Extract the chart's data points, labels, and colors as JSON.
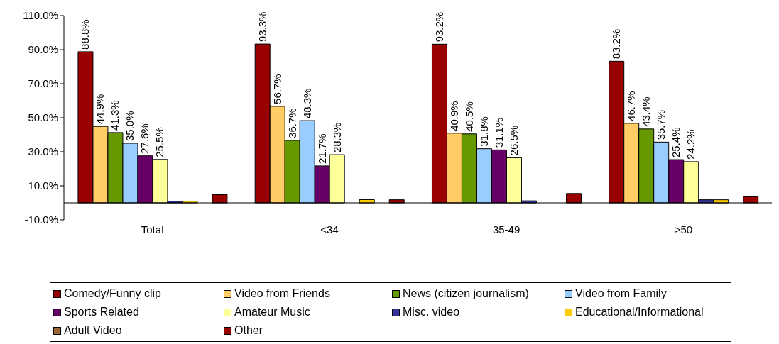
{
  "chart_data": {
    "type": "bar",
    "categories": [
      "Total",
      "<34",
      "35-49",
      ">50"
    ],
    "series": [
      {
        "name": "Comedy/Funny clip",
        "color": "#990000",
        "values": [
          88.8,
          93.3,
          93.2,
          83.2
        ],
        "value_labels": [
          "88.8%",
          "93.3%",
          "93.2%",
          "83.2%"
        ]
      },
      {
        "name": "Video from Friends",
        "color": "#ffcc66",
        "values": [
          44.9,
          56.7,
          40.9,
          46.7
        ],
        "value_labels": [
          "44.9%",
          "56.7%",
          "40.9%",
          "46.7%"
        ]
      },
      {
        "name": "News (citizen journalism)",
        "color": "#669900",
        "values": [
          41.3,
          36.7,
          40.5,
          43.4
        ],
        "value_labels": [
          "41.3%",
          "36.7%",
          "40.5%",
          "43.4%"
        ]
      },
      {
        "name": "Video from Family",
        "color": "#99ccff",
        "values": [
          35.0,
          48.3,
          31.8,
          35.7
        ],
        "value_labels": [
          "35.0%",
          "48.3%",
          "31.8%",
          "35.7%"
        ]
      },
      {
        "name": "Sports Related",
        "color": "#660066",
        "values": [
          27.6,
          21.7,
          31.1,
          25.4
        ],
        "value_labels": [
          "27.6%",
          "21.7%",
          "31.1%",
          "25.4%"
        ]
      },
      {
        "name": "Amateur Music",
        "color": "#ffff99",
        "values": [
          25.5,
          28.3,
          26.5,
          24.2
        ],
        "value_labels": [
          "25.5%",
          "28.3%",
          "26.5%",
          "24.2%"
        ]
      },
      {
        "name": "Misc. video",
        "color": "#333399",
        "values": [
          1.0,
          0,
          1.2,
          1.8
        ]
      },
      {
        "name": "Educational/Informational",
        "color": "#ffcc00",
        "values": [
          1.0,
          1.9,
          0,
          1.8
        ]
      },
      {
        "name": "Adult Video",
        "color": "#996633",
        "values": [
          null,
          0,
          null,
          0
        ]
      },
      {
        "name": "Other",
        "color": "#990000",
        "values": [
          4.8,
          1.8,
          5.5,
          3.6
        ]
      }
    ],
    "ylim": [
      -10,
      110
    ],
    "yticks": [
      {
        "value": -10,
        "label": "-10.0%"
      },
      {
        "value": 10,
        "label": "10.0%"
      },
      {
        "value": 30,
        "label": "30.0%"
      },
      {
        "value": 50,
        "label": "50.0%"
      },
      {
        "value": 70,
        "label": "70.0%"
      },
      {
        "value": 90,
        "label": "90.0%"
      },
      {
        "value": 110,
        "label": "110.0%"
      }
    ],
    "grid": false,
    "legend": "bottom"
  }
}
